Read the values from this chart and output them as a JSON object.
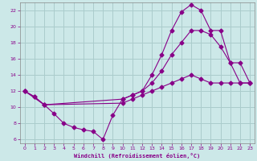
{
  "title": "",
  "xlabel": "Windchill (Refroidissement éolien,°C)",
  "bg_color": "#cce8e8",
  "grid_color": "#aacccc",
  "line_color": "#880088",
  "xlim": [
    -0.5,
    23.5
  ],
  "ylim": [
    5.5,
    23.0
  ],
  "xticks": [
    0,
    1,
    2,
    3,
    4,
    5,
    6,
    7,
    8,
    9,
    10,
    11,
    12,
    13,
    14,
    15,
    16,
    17,
    18,
    19,
    20,
    21,
    22,
    23
  ],
  "yticks": [
    6,
    8,
    10,
    12,
    14,
    16,
    18,
    20,
    22
  ],
  "curve1_x": [
    0,
    1,
    2,
    3,
    4,
    5,
    6,
    7,
    8,
    9,
    10,
    11,
    12,
    13,
    14,
    15,
    16,
    17,
    18,
    19,
    20,
    21,
    22,
    23
  ],
  "curve1_y": [
    12,
    11.3,
    10.3,
    9.2,
    8.0,
    7.5,
    7.2,
    7.0,
    6.0,
    9.0,
    11.0,
    11.5,
    12.0,
    14.0,
    16.5,
    19.5,
    21.8,
    22.7,
    22.0,
    19.5,
    19.5,
    15.5,
    13.0,
    13.0
  ],
  "curve2_x": [
    0,
    2,
    10,
    11,
    12,
    13,
    14,
    15,
    16,
    17,
    18,
    19,
    20,
    21,
    22,
    23
  ],
  "curve2_y": [
    12,
    10.3,
    11.0,
    11.5,
    12.0,
    13.0,
    14.5,
    16.5,
    18.0,
    19.5,
    19.5,
    19.0,
    17.5,
    15.5,
    15.5,
    13.0
  ],
  "curve3_x": [
    0,
    1,
    2,
    10,
    11,
    12,
    13,
    14,
    15,
    16,
    17,
    18,
    19,
    20,
    21,
    22,
    23
  ],
  "curve3_y": [
    12,
    11.3,
    10.3,
    10.5,
    11.0,
    11.5,
    12.0,
    12.5,
    13.0,
    13.5,
    14.0,
    13.5,
    13.0,
    13.0,
    13.0,
    13.0,
    13.0
  ]
}
